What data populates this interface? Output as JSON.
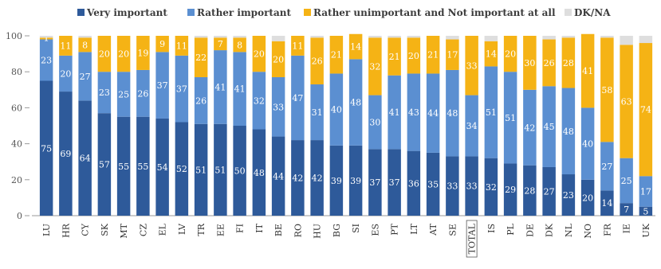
{
  "chart_data": {
    "type": "bar",
    "stacked": true,
    "orientation": "vertical",
    "categories": [
      "LU",
      "HR",
      "CY",
      "SK",
      "MT",
      "CZ",
      "EL",
      "LV",
      "TR",
      "EE",
      "FI",
      "IT",
      "BE",
      "RO",
      "HU",
      "BG",
      "SI",
      "ES",
      "PT",
      "LT",
      "AT",
      "SE",
      "TOTAL",
      "IS",
      "PL",
      "DE",
      "DK",
      "NL",
      "NO",
      "FR",
      "IE",
      "UK"
    ],
    "boxed_category": "TOTAL",
    "series": [
      {
        "name": "Very important",
        "color": "#2e5a9a",
        "label_color": "#ffffff",
        "values": [
          75,
          69,
          64,
          57,
          55,
          55,
          54,
          52,
          51,
          51,
          50,
          48,
          44,
          42,
          42,
          39,
          39,
          37,
          37,
          36,
          35,
          33,
          33,
          32,
          29,
          28,
          27,
          23,
          20,
          14,
          7,
          5
        ]
      },
      {
        "name": "Rather important",
        "color": "#5b8fd1",
        "label_color": "#ffffff",
        "values": [
          23,
          20,
          27,
          23,
          25,
          26,
          37,
          37,
          26,
          41,
          41,
          32,
          33,
          47,
          31,
          40,
          48,
          30,
          41,
          43,
          44,
          48,
          34,
          51,
          51,
          42,
          45,
          48,
          40,
          27,
          25,
          17
        ]
      },
      {
        "name": "Rather unimportant and Not important at all",
        "color": "#f5b315",
        "label_color": "#ffffff",
        "values": [
          1,
          11,
          8,
          20,
          20,
          19,
          9,
          11,
          22,
          7,
          8,
          20,
          20,
          11,
          26,
          21,
          14,
          32,
          21,
          20,
          21,
          17,
          33,
          14,
          20,
          30,
          26,
          28,
          41,
          58,
          63,
          74
        ]
      },
      {
        "name": "DK/NA",
        "color": "#dedede",
        "label_color": "#ffffff",
        "values": [
          1,
          0,
          1,
          0,
          0,
          0,
          0,
          0,
          1,
          1,
          1,
          0,
          3,
          0,
          1,
          0,
          0,
          1,
          1,
          1,
          0,
          2,
          0,
          3,
          0,
          0,
          2,
          1,
          0,
          1,
          5,
          4
        ]
      }
    ],
    "ylim": [
      0,
      100
    ],
    "yticks": [
      0,
      20,
      40,
      60,
      80,
      100
    ],
    "grid": false,
    "legend_position": "top"
  }
}
